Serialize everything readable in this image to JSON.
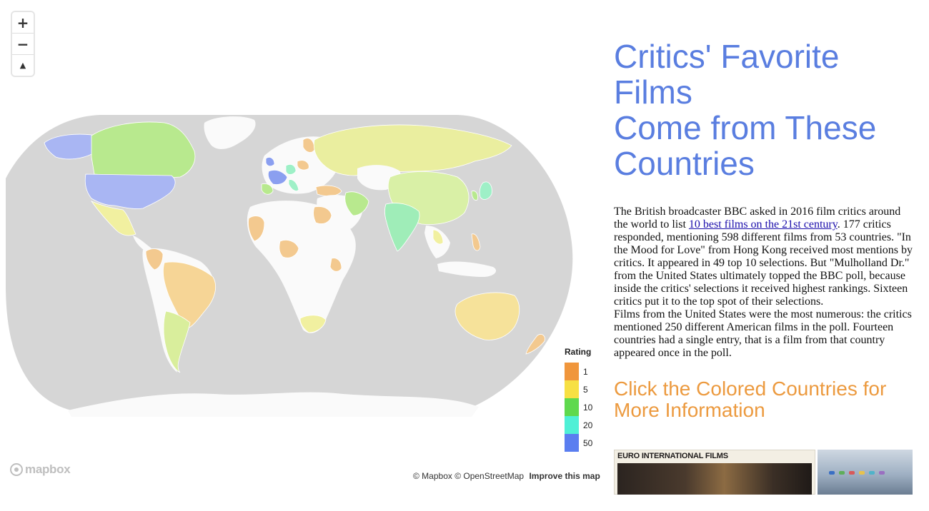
{
  "map": {
    "controls": {
      "zoom_in": "+",
      "zoom_out": "−",
      "compass": "▲"
    },
    "legend": {
      "title": "Rating",
      "items": [
        {
          "label": "1",
          "color": "#f0963c"
        },
        {
          "label": "5",
          "color": "#f7e043"
        },
        {
          "label": "10",
          "color": "#5fd94e"
        },
        {
          "label": "20",
          "color": "#4ff0d6"
        },
        {
          "label": "50",
          "color": "#5a7ef0"
        }
      ]
    },
    "colors": {
      "ocean": "#d6d6d6",
      "land": "#fafafa",
      "usa": "#a9b6f3",
      "canada": "#b8e98e",
      "mexico": "#f1f0a0",
      "brazil": "#f6d596",
      "south_america": "#d9ee9c",
      "russia": "#eaee9f",
      "china": "#d9f0a6",
      "india": "#9fedb8",
      "australia": "#f6e29a",
      "africa_tan": "#f3c98f",
      "europe_blue": "#8b9ff0",
      "europe_green": "#9ef0c7"
    },
    "logo": "mapbox",
    "attribution": "© Mapbox © OpenStreetMap",
    "improve": "Improve this map"
  },
  "panel": {
    "headline_1": "Critics' Favorite Films",
    "headline_2": "Come from These Countries",
    "p1_before": "The British broadcaster BBC asked in 2016 film critics around the world to list ",
    "p1_link": "10 best films on the 21st century",
    "p1_after": ". 177 critics responded, mentioning 598 different films from 53 countries. \"In the Mood for Love\" from Hong Kong received most mentions by critics. It appeared in 49 top 10 selections. But \"Mulholland Dr.\" from the United States ultimately topped the BBC poll, because inside the critics' selections it received highest rankings. Sixteen critics put it to the top spot of their selections.",
    "p2": "Films from the United States were the most numerous: the critics mentioned 250 different American films in the poll. Fourteen countries had a single entry, that is a film from that country appeared once in the poll.",
    "cta": "Click the Colored Countries for More Information",
    "poster_title": "EURO INTERNATIONAL FILMS"
  }
}
